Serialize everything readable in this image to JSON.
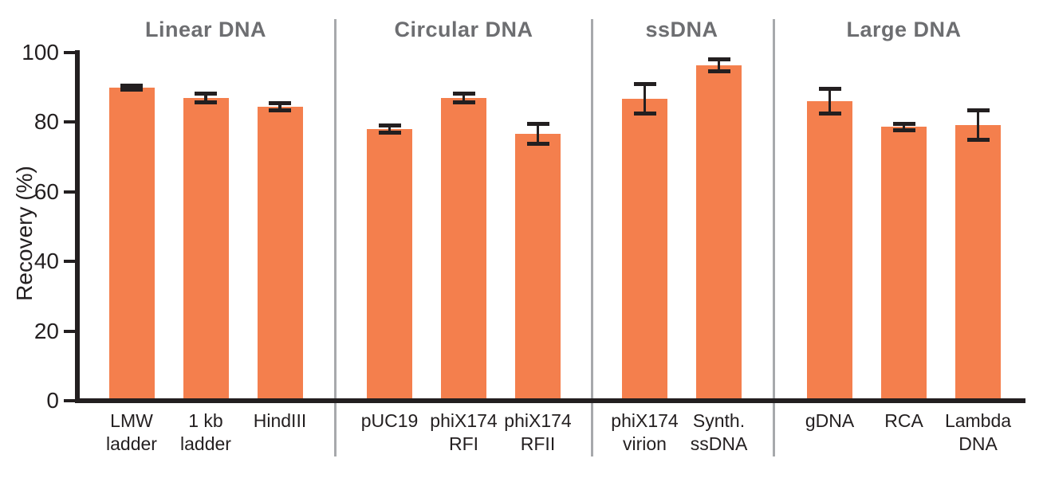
{
  "colors": {
    "background": "#FFFFFF",
    "bar": "#F47F4D",
    "ink": "#231F20",
    "header_gray": "#6D6E71",
    "divider_gray": "#A7A9AC"
  },
  "chart_data": {
    "type": "bar",
    "title": "",
    "xlabel": "",
    "ylabel": "Recovery (%)",
    "ylim": [
      0,
      100
    ],
    "yticks": [
      0,
      20,
      40,
      60,
      80,
      100
    ],
    "grid": false,
    "legend": null,
    "error_bars": true,
    "groups": [
      {
        "title": "Linear DNA",
        "bars": [
          {
            "label": "LMW\nladder",
            "value": 89.9,
            "error": 0.6
          },
          {
            "label": "1 kb\nladder",
            "value": 87.0,
            "error": 1.2
          },
          {
            "label": "HindIII",
            "value": 84.4,
            "error": 1.0
          }
        ]
      },
      {
        "title": "Circular DNA",
        "bars": [
          {
            "label": "pUC19",
            "value": 78.0,
            "error": 1.1
          },
          {
            "label": "phiX174\nRFI",
            "value": 87.0,
            "error": 1.3
          },
          {
            "label": "phiX174\nRFII",
            "value": 76.7,
            "error": 2.9
          }
        ]
      },
      {
        "title": "ssDNA",
        "bars": [
          {
            "label": "phiX174\nvirion",
            "value": 86.7,
            "error": 4.2
          },
          {
            "label": "Synth.\nssDNA",
            "value": 96.3,
            "error": 1.7
          }
        ]
      },
      {
        "title": "Large DNA",
        "bars": [
          {
            "label": "gDNA",
            "value": 86.0,
            "error": 3.5
          },
          {
            "label": "RCA",
            "value": 78.7,
            "error": 0.9
          },
          {
            "label": "Lambda\nDNA",
            "value": 79.2,
            "error": 4.2
          }
        ]
      }
    ]
  }
}
